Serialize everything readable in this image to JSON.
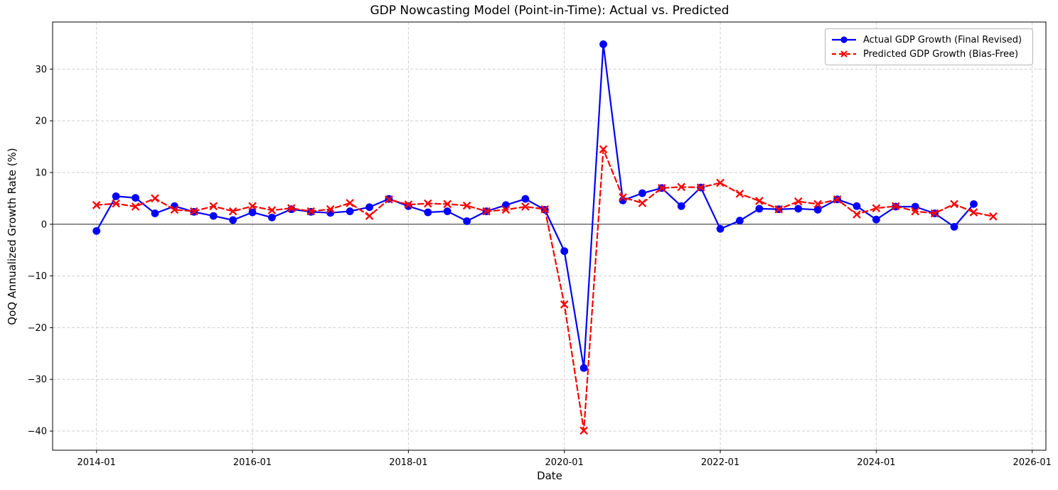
{
  "page_title": "GDP Nowcasting Model (Point-in-Time): Actual vs. Predicted",
  "chart_data": {
    "type": "line",
    "title": "GDP Nowcasting Model (Point-in-Time): Actual vs. Predicted",
    "xlabel": "Date",
    "ylabel": "QoQ Annualized Growth Rate (%)",
    "grid": true,
    "legend_position": "upper right",
    "zero_line": true,
    "ylim": [
      -43.7,
      39.1
    ],
    "x": [
      "2014-01",
      "2014-04",
      "2014-07",
      "2014-10",
      "2015-01",
      "2015-04",
      "2015-07",
      "2015-10",
      "2016-01",
      "2016-04",
      "2016-07",
      "2016-10",
      "2017-01",
      "2017-04",
      "2017-07",
      "2017-10",
      "2018-01",
      "2018-04",
      "2018-07",
      "2018-10",
      "2019-01",
      "2019-04",
      "2019-07",
      "2019-10",
      "2020-01",
      "2020-04",
      "2020-07",
      "2020-10",
      "2021-01",
      "2021-04",
      "2021-07",
      "2021-10",
      "2022-01",
      "2022-04",
      "2022-07",
      "2022-10",
      "2023-01",
      "2023-04",
      "2023-07",
      "2023-10",
      "2024-01",
      "2024-04",
      "2024-07",
      "2024-10",
      "2025-01",
      "2025-04",
      "2025-07"
    ],
    "x_ticks": [
      "2014-01",
      "2016-01",
      "2018-01",
      "2020-01",
      "2022-01",
      "2024-01",
      "2026-01"
    ],
    "y_ticks": [
      30,
      20,
      10,
      0,
      -10,
      -20,
      -30,
      -40
    ],
    "y_tick_labels": [
      "30",
      "20",
      "10",
      "0",
      "−10",
      "−20",
      "−30",
      "−40"
    ],
    "series": [
      {
        "name": "Actual GDP Growth (Final Revised)",
        "color": "#0000ff",
        "line_style": "solid",
        "marker": "circle",
        "values": [
          -1.3,
          5.4,
          5.1,
          2.1,
          3.5,
          2.4,
          1.6,
          0.8,
          2.3,
          1.3,
          2.9,
          2.4,
          2.2,
          2.5,
          3.3,
          4.9,
          3.5,
          2.3,
          2.5,
          0.6,
          2.5,
          3.7,
          4.9,
          2.8,
          -5.2,
          -27.8,
          34.8,
          4.6,
          6.0,
          7.0,
          3.5,
          7.1,
          -0.9,
          0.7,
          3.0,
          2.9,
          3.0,
          2.8,
          4.8,
          3.5,
          0.9,
          3.4,
          3.4,
          2.1,
          -0.5,
          3.9,
          null
        ]
      },
      {
        "name": "Predicted GDP Growth (Bias-Free)",
        "color": "#ff0000",
        "line_style": "dashed",
        "marker": "x",
        "values": [
          3.7,
          4.0,
          3.4,
          5.0,
          2.8,
          2.5,
          3.5,
          2.5,
          3.5,
          2.7,
          3.1,
          2.5,
          2.9,
          4.1,
          1.6,
          4.8,
          3.8,
          4.0,
          3.9,
          3.6,
          2.5,
          2.8,
          3.4,
          2.9,
          -15.5,
          -39.9,
          14.5,
          5.2,
          4.1,
          7.0,
          7.2,
          7.1,
          8.0,
          5.9,
          4.5,
          2.9,
          4.4,
          3.9,
          4.8,
          1.9,
          3.1,
          3.5,
          2.5,
          2.1,
          3.9,
          2.3,
          1.5
        ]
      }
    ]
  }
}
